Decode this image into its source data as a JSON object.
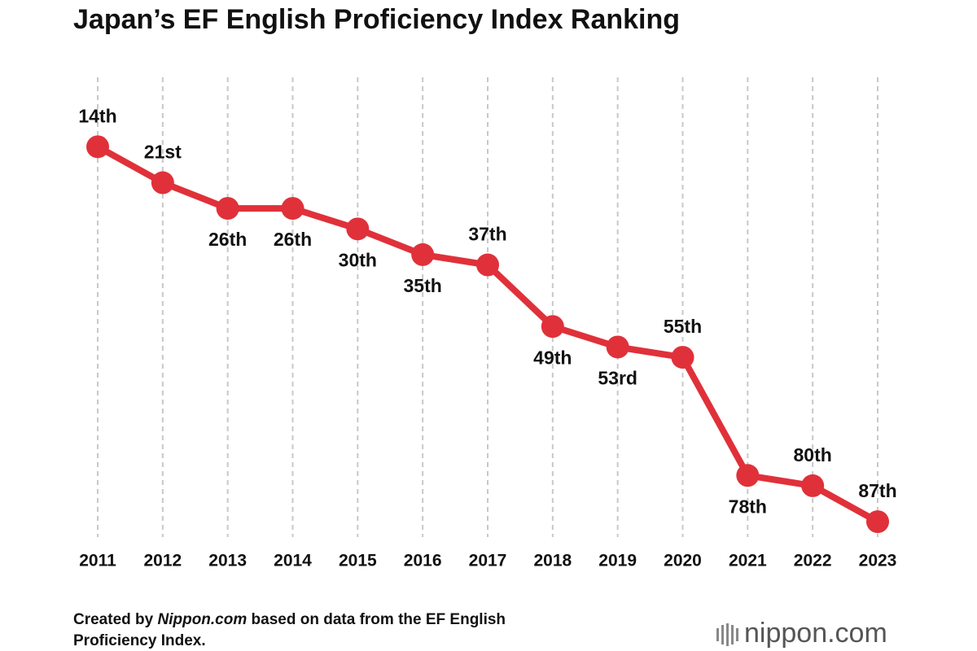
{
  "chart_data": {
    "type": "line",
    "title": "Japan’s EF English Proficiency Index Ranking",
    "categories": [
      "2011",
      "2012",
      "2013",
      "2014",
      "2015",
      "2016",
      "2017",
      "2018",
      "2019",
      "2020",
      "2021",
      "2022",
      "2023"
    ],
    "values": [
      14,
      21,
      26,
      26,
      30,
      35,
      37,
      49,
      53,
      55,
      78,
      80,
      87
    ],
    "value_labels": [
      "14th",
      "21st",
      "26th",
      "26th",
      "30th",
      "35th",
      "37th",
      "49th",
      "53rd",
      "55th",
      "78th",
      "80th",
      "87th"
    ],
    "color": "#e0313a",
    "ylim": [
      90,
      0
    ],
    "grid": true
  },
  "source": {
    "prefix": "Created by",
    "site": "Nippon.com",
    "rest": "based on data from the EF English",
    "rest2": "Proficiency Index."
  },
  "logo": {
    "name": "nippon",
    "suffix": ".com"
  }
}
